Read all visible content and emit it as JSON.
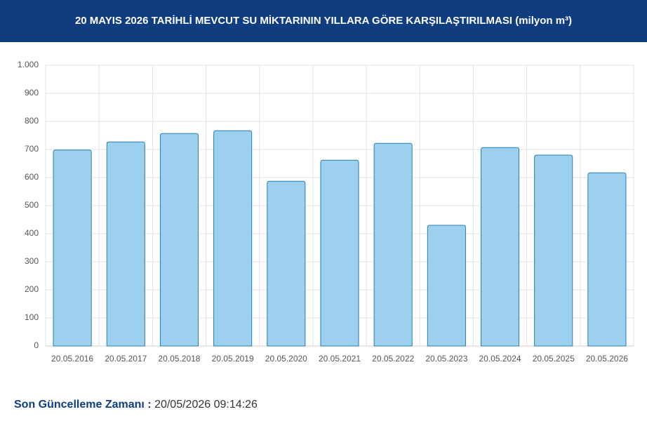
{
  "chart_data": {
    "type": "bar",
    "title": "20 MAYIS 2026 TARİHLİ MEVCUT SU MİKTARININ YILLARA GÖRE KARŞILAŞTIRILMASI (milyon m³)",
    "categories": [
      "20.05.2016",
      "20.05.2017",
      "20.05.2018",
      "20.05.2019",
      "20.05.2020",
      "20.05.2021",
      "20.05.2022",
      "20.05.2023",
      "20.05.2024",
      "20.05.2025",
      "20.05.2026"
    ],
    "values": [
      698,
      727,
      757,
      767,
      587,
      662,
      722,
      430,
      707,
      680,
      617
    ],
    "color": "#9dd0ee",
    "ylim": [
      0,
      1000
    ],
    "yticks": [
      0,
      100,
      200,
      300,
      400,
      500,
      600,
      700,
      800,
      900,
      {
        "value": 1000,
        "label": "1.000"
      }
    ],
    "grid": true
  },
  "footer": {
    "label": "Son Güncelleme Zamanı :",
    "value": "20/05/2026 09:14:26"
  }
}
